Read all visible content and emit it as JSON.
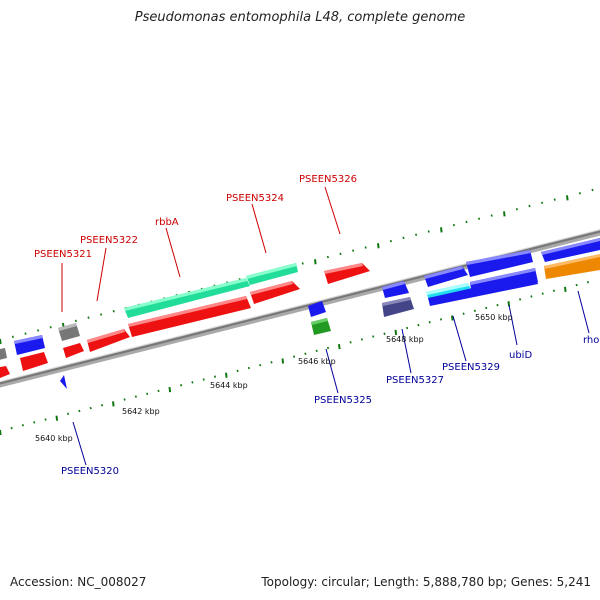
{
  "title": "Pseudomonas entomophila L48, complete genome",
  "footer": {
    "accession": "Accession: NC_008027",
    "summary": "Topology: circular; Length: 5,888,780 bp; Genes: 5,241"
  },
  "colors": {
    "red": "#ee1111",
    "blue": "#1a1aee",
    "teal": "#22dd99",
    "gray": "#777777",
    "navy": "#444488",
    "green": "#229922",
    "cyan": "#22ddee",
    "orange": "#ee8800",
    "tick": "#117711",
    "backbone": "#888888",
    "label_red": "#cc0000",
    "label_blue": "#000099"
  },
  "scale_labels": [
    "5640 kbp",
    "5642 kbp",
    "5644 kbp",
    "5646 kbp",
    "5648 kbp",
    "5650 kbp"
  ],
  "gene_labels": [
    {
      "text": "PSEEN5321",
      "color": "red"
    },
    {
      "text": "PSEEN5322",
      "color": "red"
    },
    {
      "text": "rbbA",
      "color": "red"
    },
    {
      "text": "PSEEN5324",
      "color": "red"
    },
    {
      "text": "PSEEN5326",
      "color": "red"
    },
    {
      "text": "PSEEN5320",
      "color": "blue"
    },
    {
      "text": "PSEEN5325",
      "color": "blue"
    },
    {
      "text": "PSEEN5327",
      "color": "blue"
    },
    {
      "text": "PSEEN5329",
      "color": "blue"
    },
    {
      "text": "ubiD",
      "color": "blue"
    },
    {
      "text": "rho",
      "color": "blue"
    }
  ]
}
